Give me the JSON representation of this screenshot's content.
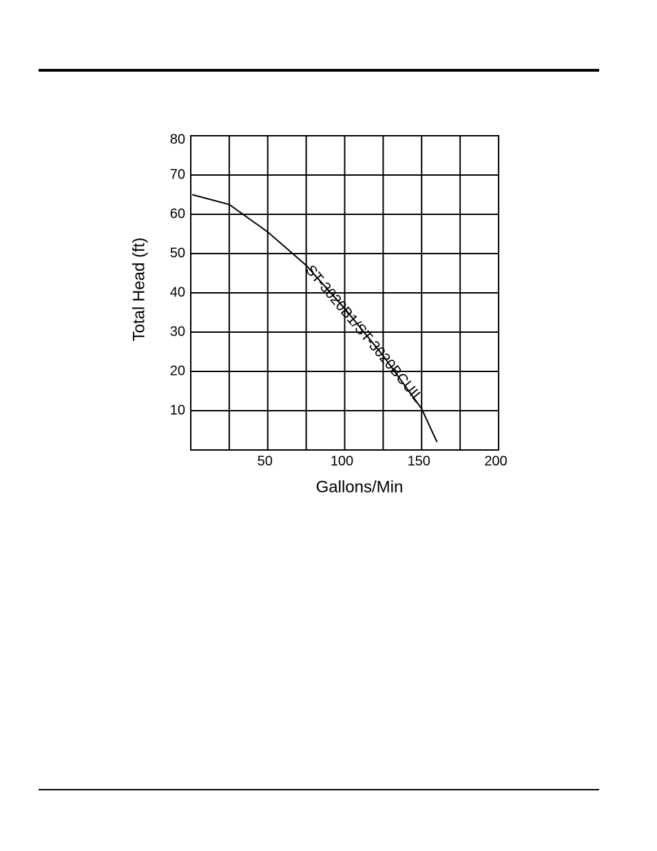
{
  "chart_data": {
    "type": "line",
    "x_label": "Gallons/Min",
    "y_label": "Total Head (ft)",
    "x": [
      1,
      25,
      50,
      75,
      100,
      125,
      150,
      160
    ],
    "series": [
      {
        "name": "ST-3020B1/ST-3020BCUIL",
        "color": "#000000",
        "values": [
          65,
          62.5,
          55.5,
          47,
          36,
          24,
          10.5,
          2
        ]
      }
    ],
    "xlim": [
      0,
      200
    ],
    "xticks": [
      50,
      100,
      150,
      200
    ],
    "xgrid": [
      25,
      75,
      125,
      175
    ],
    "ylim": [
      0,
      80
    ],
    "yticks": [
      10,
      20,
      30,
      40,
      50,
      60,
      70,
      80
    ],
    "grid": true
  }
}
